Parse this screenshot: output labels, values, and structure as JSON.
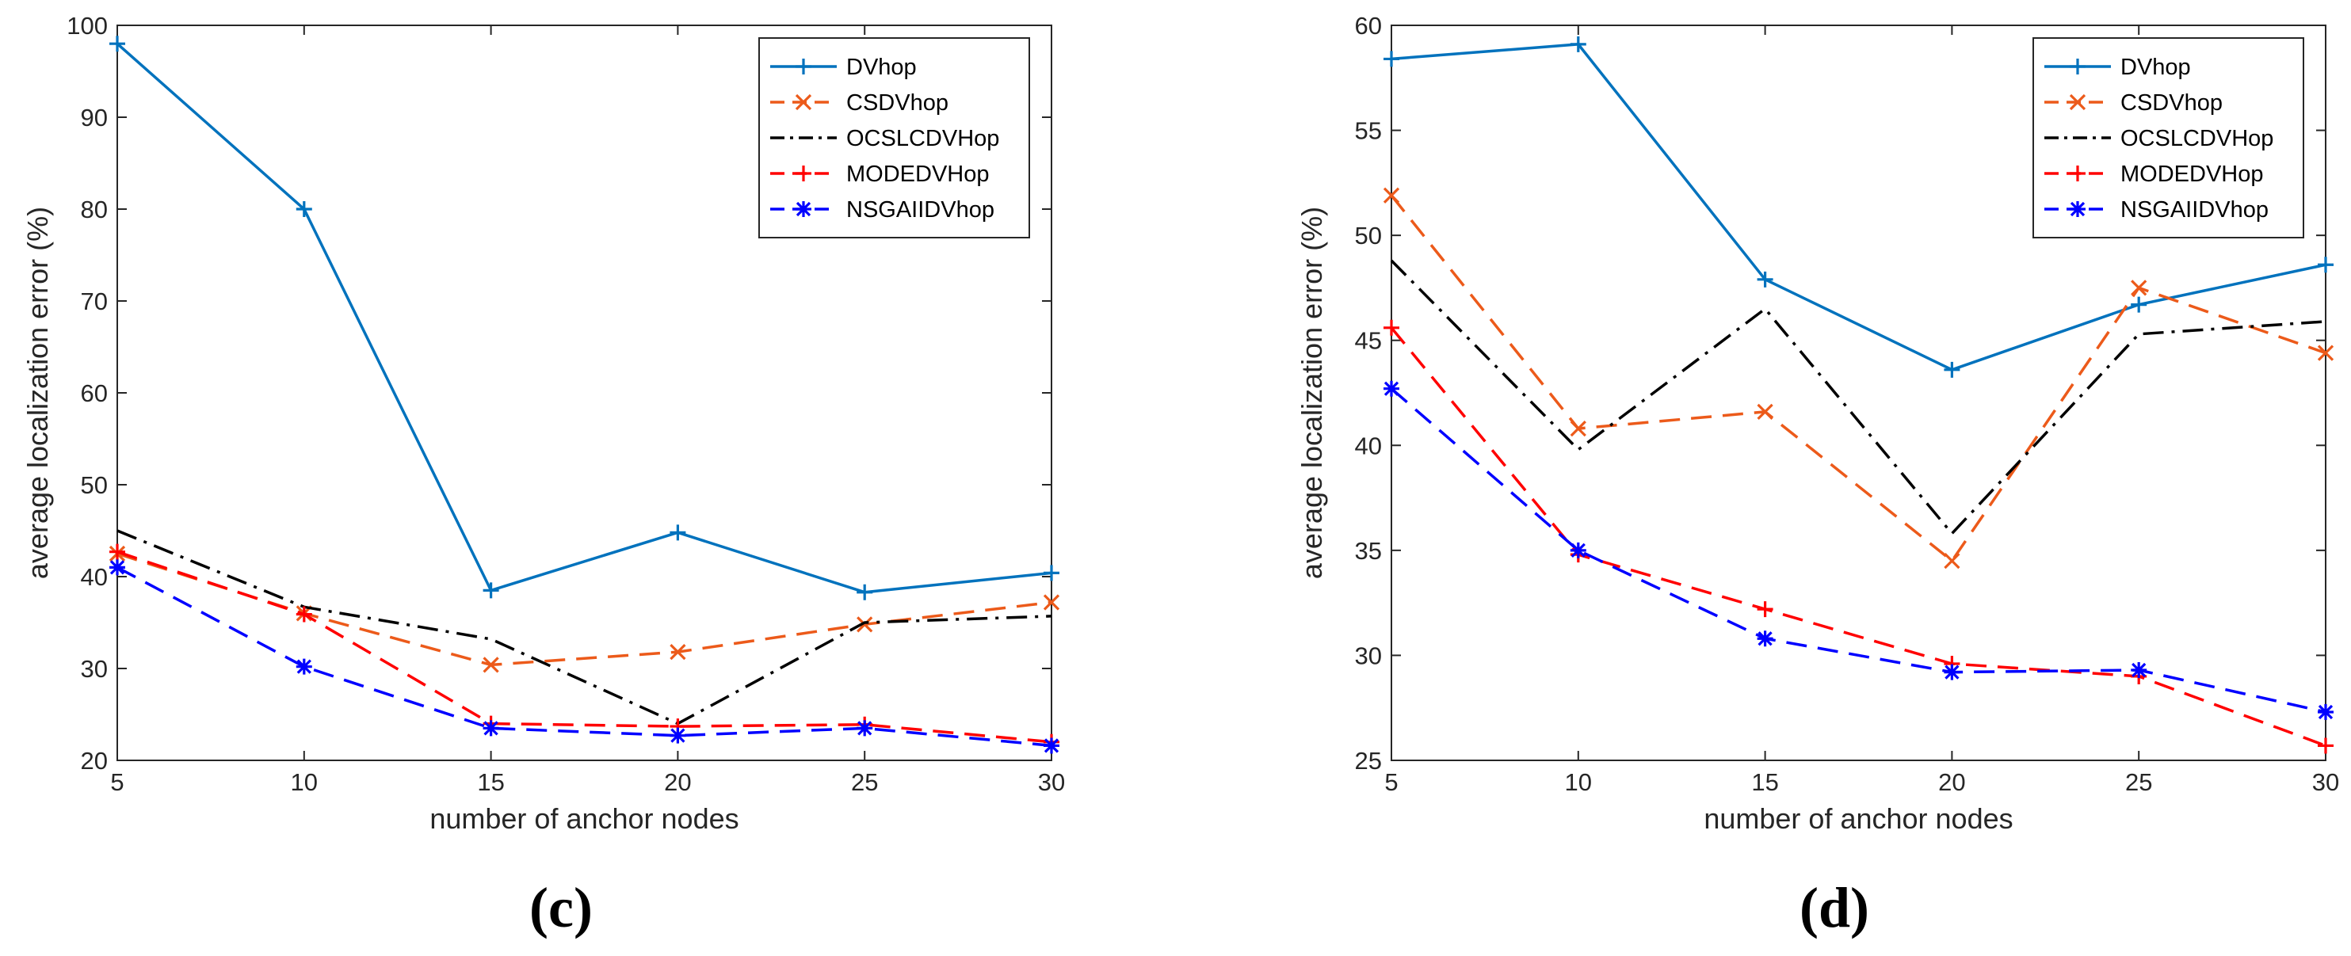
{
  "chart_data": [
    {
      "type": "line",
      "caption": "(c)",
      "xlabel": "number of anchor nodes",
      "ylabel": "average localization error (%)",
      "x": [
        5,
        10,
        15,
        20,
        25,
        30
      ],
      "xlim": [
        5,
        30
      ],
      "ylim": [
        20,
        100
      ],
      "xticks": [
        5,
        10,
        15,
        20,
        25,
        30
      ],
      "yticks": [
        20,
        30,
        40,
        50,
        60,
        70,
        80,
        90,
        100
      ],
      "legend_position": "top-right",
      "series": [
        {
          "name": "DVhop",
          "values": [
            98,
            80,
            38.5,
            44.8,
            38.3,
            40.4
          ],
          "color": "#0072bd",
          "dash": "solid",
          "marker": "plus"
        },
        {
          "name": "CSDVhop",
          "values": [
            42.5,
            36,
            30.4,
            31.8,
            34.8,
            37.2
          ],
          "color": "#ec5a1a",
          "dash": "dashed",
          "marker": "x"
        },
        {
          "name": "OCSLCDVHop",
          "values": [
            45,
            36.7,
            33.2,
            24,
            35,
            35.7
          ],
          "color": "#000000",
          "dash": "dashdot",
          "marker": "none"
        },
        {
          "name": "MODEDVHop",
          "values": [
            42.7,
            35.9,
            24,
            23.7,
            23.9,
            22
          ],
          "color": "#ff0000",
          "dash": "dashed",
          "marker": "plus"
        },
        {
          "name": "NSGAIIDVhop",
          "values": [
            41,
            30.2,
            23.5,
            22.7,
            23.5,
            21.6
          ],
          "color": "#0000ff",
          "dash": "dashed",
          "marker": "asterisk"
        }
      ]
    },
    {
      "type": "line",
      "caption": "(d)",
      "xlabel": "number of anchor nodes",
      "ylabel": "average localization error (%)",
      "x": [
        5,
        10,
        15,
        20,
        25,
        30
      ],
      "xlim": [
        5,
        30
      ],
      "ylim": [
        25,
        60
      ],
      "xticks": [
        5,
        10,
        15,
        20,
        25,
        30
      ],
      "yticks": [
        25,
        30,
        35,
        40,
        45,
        50,
        55,
        60
      ],
      "legend_position": "top-right",
      "series": [
        {
          "name": "DVhop",
          "values": [
            58.4,
            59.1,
            47.9,
            43.6,
            46.7,
            48.6
          ],
          "color": "#0072bd",
          "dash": "solid",
          "marker": "plus"
        },
        {
          "name": "CSDVhop",
          "values": [
            51.9,
            40.8,
            41.6,
            34.5,
            47.5,
            44.4
          ],
          "color": "#ec5a1a",
          "dash": "dashed",
          "marker": "x"
        },
        {
          "name": "OCSLCDVHop",
          "values": [
            48.8,
            39.8,
            46.5,
            35.8,
            45.3,
            45.9
          ],
          "color": "#000000",
          "dash": "dashdot",
          "marker": "none"
        },
        {
          "name": "MODEDVHop",
          "values": [
            45.6,
            34.8,
            32.2,
            29.6,
            29.0,
            25.7
          ],
          "color": "#ff0000",
          "dash": "dashed",
          "marker": "plus"
        },
        {
          "name": "NSGAIIDVhop",
          "values": [
            42.7,
            35.0,
            30.8,
            29.2,
            29.3,
            27.3
          ],
          "color": "#0000ff",
          "dash": "dashed",
          "marker": "asterisk"
        }
      ]
    }
  ]
}
